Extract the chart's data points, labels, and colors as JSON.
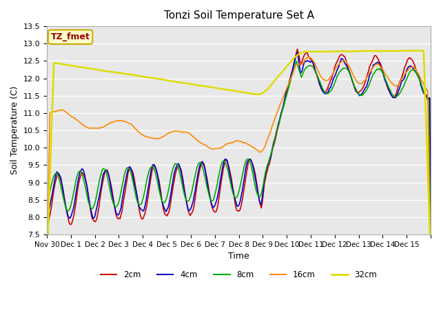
{
  "title": "Tonzi Soil Temperature Set A",
  "xlabel": "Time",
  "ylabel": "Soil Temperature (C)",
  "ylim": [
    7.5,
    13.5
  ],
  "yticks": [
    7.5,
    8.0,
    8.5,
    9.0,
    9.5,
    10.0,
    10.5,
    11.0,
    11.5,
    12.0,
    12.5,
    13.0,
    13.5
  ],
  "xtick_labels": [
    "Nov 30",
    "Dec 1",
    "Dec 2",
    "Dec 3",
    "Dec 4",
    "Dec 5",
    "Dec 6",
    "Dec 7",
    "Dec 8",
    "Dec 9",
    "Dec 10",
    "Dec 11",
    "Dec 12",
    "Dec 13",
    "Dec 14",
    "Dec 15"
  ],
  "line_colors": {
    "2cm": "#cc0000",
    "4cm": "#0000cc",
    "8cm": "#00aa00",
    "16cm": "#ff8800",
    "32cm": "#dddd00"
  },
  "annotation_text": "TZ_fmet",
  "annotation_color": "#990000",
  "annotation_bg": "#ffffcc",
  "annotation_border": "#ccaa00",
  "background_color": "#e8e8e8",
  "legend_labels": [
    "2cm",
    "4cm",
    "8cm",
    "16cm",
    "32cm"
  ]
}
